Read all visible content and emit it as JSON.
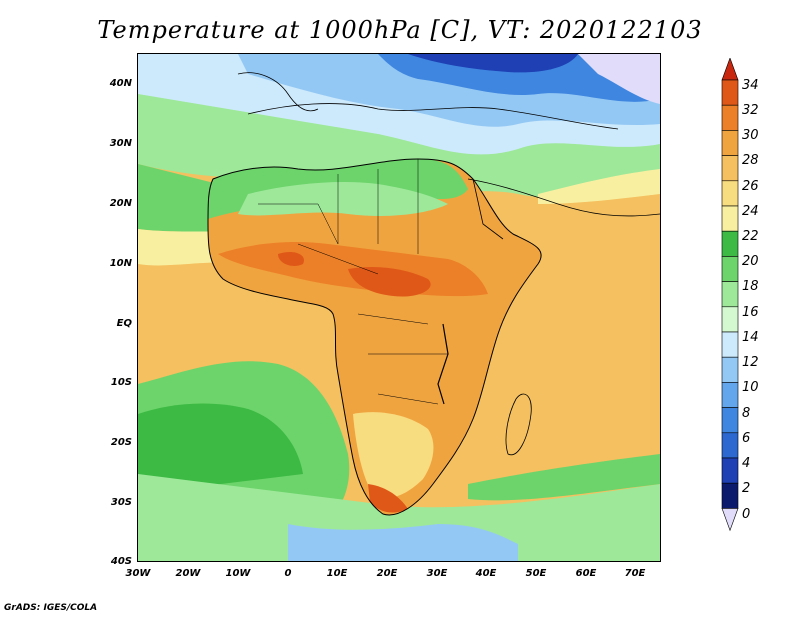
{
  "title": "Temperature at 1000hPa [C], VT: 2020122103",
  "credit": "GrADS: IGES/COLA",
  "lat_labels": [
    "40N",
    "30N",
    "20N",
    "10N",
    "EQ",
    "10S",
    "20S",
    "30S",
    "40S"
  ],
  "lon_labels": [
    "30W",
    "20W",
    "10W",
    "0",
    "10E",
    "20E",
    "30E",
    "40E",
    "50E",
    "60E",
    "70E"
  ],
  "colorbar": {
    "labels": [
      "34",
      "32",
      "30",
      "28",
      "26",
      "24",
      "22",
      "20",
      "18",
      "16",
      "14",
      "12",
      "10",
      "8",
      "6",
      "4",
      "2",
      "0"
    ],
    "colors": [
      "#e0dcfa",
      "#0c1a6e",
      "#1e40b4",
      "#2c68d0",
      "#3f86e0",
      "#63a6ec",
      "#94c8f4",
      "#cdeafc",
      "#d4f8d0",
      "#9ee89a",
      "#6cd46a",
      "#3cba44",
      "#f8f0a0",
      "#f8dc80",
      "#f4c060",
      "#f0a440",
      "#ec8028",
      "#e05818",
      "#c82810"
    ]
  },
  "map": {
    "lon_range": [
      -30,
      75
    ],
    "lat_range": [
      -40,
      45
    ],
    "field": "Temperature at 1000hPa",
    "units": "C",
    "valid_time": "2020122103"
  }
}
